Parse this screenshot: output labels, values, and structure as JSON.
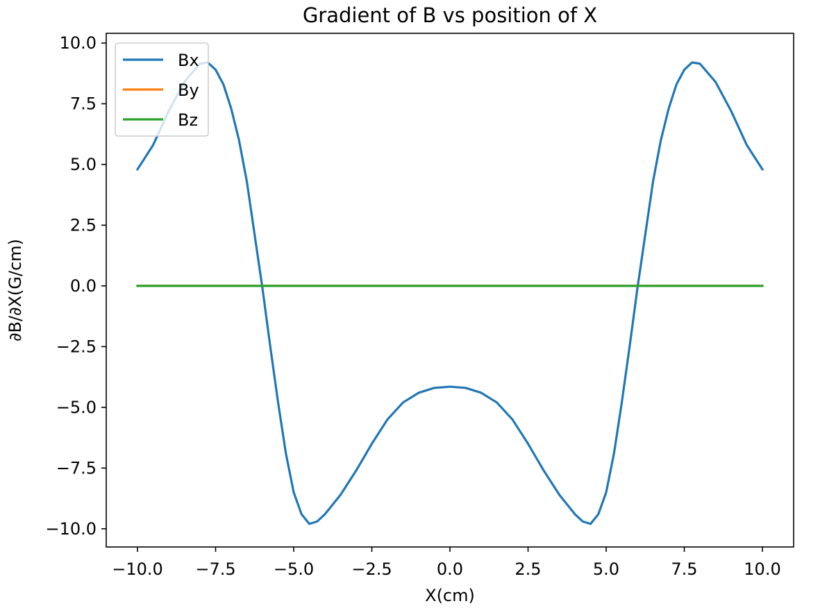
{
  "chart_data": {
    "type": "line",
    "title": "Gradient of B vs position of X",
    "xlabel": "X(cm)",
    "ylabel": "∂B/∂X(G/cm)",
    "xlim": [
      -11.0,
      11.0
    ],
    "ylim": [
      -10.75,
      10.4
    ],
    "x_ticks": [
      -10.0,
      -7.5,
      -5.0,
      -2.5,
      0.0,
      2.5,
      5.0,
      7.5,
      10.0
    ],
    "x_tick_labels": [
      "−10.0",
      "−7.5",
      "−5.0",
      "−2.5",
      "0.0",
      "2.5",
      "5.0",
      "7.5",
      "10.0"
    ],
    "y_ticks": [
      10.0,
      7.5,
      5.0,
      2.5,
      0.0,
      -2.5,
      -5.0,
      -7.5,
      -10.0
    ],
    "y_tick_labels": [
      "10.0",
      "7.5",
      "5.0",
      "2.5",
      "0.0",
      "−2.5",
      "−5.0",
      "−7.5",
      "−10.0"
    ],
    "grid": false,
    "legend_position": "top-left",
    "series": [
      {
        "name": "Bx",
        "color": "#1f77b4",
        "x": [
          -10.0,
          -9.5,
          -9.0,
          -8.5,
          -8.0,
          -7.75,
          -7.5,
          -7.25,
          -7.0,
          -6.75,
          -6.5,
          -6.25,
          -6.0,
          -5.75,
          -5.5,
          -5.25,
          -5.0,
          -4.75,
          -4.5,
          -4.25,
          -4.0,
          -3.75,
          -3.5,
          -3.0,
          -2.5,
          -2.0,
          -1.5,
          -1.0,
          -0.5,
          0.0,
          0.5,
          1.0,
          1.5,
          2.0,
          2.5,
          3.0,
          3.5,
          3.75,
          4.0,
          4.25,
          4.5,
          4.75,
          5.0,
          5.25,
          5.5,
          5.75,
          6.0,
          6.25,
          6.5,
          6.75,
          7.0,
          7.25,
          7.5,
          7.75,
          8.0,
          8.5,
          9.0,
          9.5,
          10.0
        ],
        "values": [
          4.8,
          5.8,
          7.2,
          8.4,
          9.15,
          9.2,
          8.9,
          8.3,
          7.3,
          6.0,
          4.3,
          2.1,
          -0.1,
          -2.5,
          -4.8,
          -6.9,
          -8.5,
          -9.4,
          -9.8,
          -9.7,
          -9.4,
          -9.0,
          -8.6,
          -7.6,
          -6.5,
          -5.5,
          -4.8,
          -4.4,
          -4.2,
          -4.15,
          -4.2,
          -4.4,
          -4.8,
          -5.5,
          -6.5,
          -7.6,
          -8.6,
          -9.0,
          -9.4,
          -9.7,
          -9.8,
          -9.4,
          -8.5,
          -6.9,
          -4.8,
          -2.5,
          -0.1,
          2.1,
          4.3,
          6.0,
          7.3,
          8.3,
          8.9,
          9.2,
          9.15,
          8.4,
          7.2,
          5.8,
          4.8
        ]
      },
      {
        "name": "By",
        "color": "#ff7f0e",
        "x": [
          -10.0,
          10.0
        ],
        "values": [
          0.0,
          0.0
        ]
      },
      {
        "name": "Bz",
        "color": "#2ca02c",
        "x": [
          -10.0,
          10.0
        ],
        "values": [
          0.0,
          0.0
        ]
      }
    ]
  }
}
